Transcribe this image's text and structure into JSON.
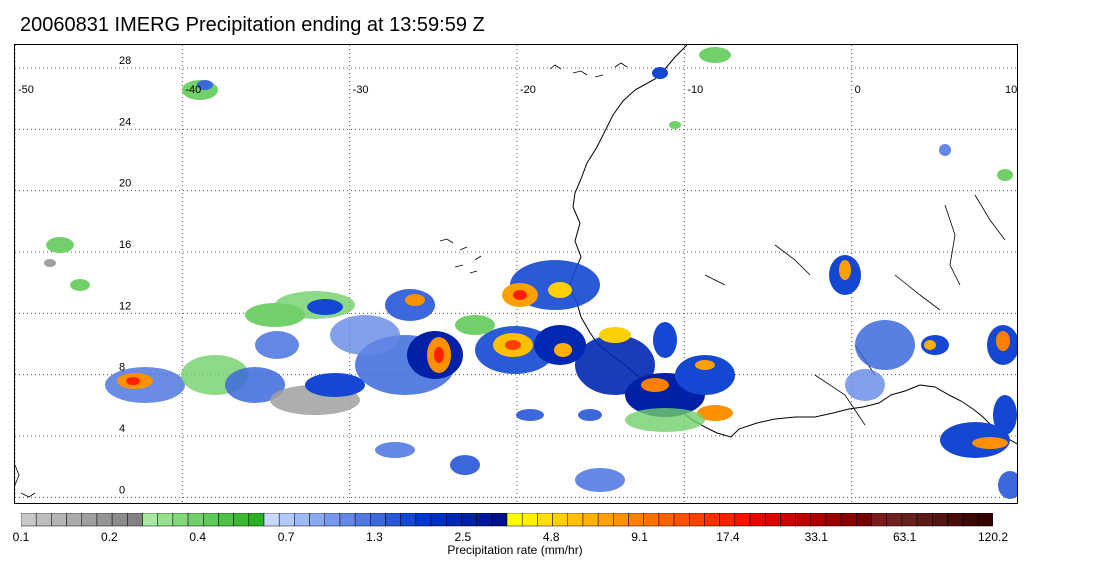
{
  "title": "20060831 IMERG Precipitation ending at 13:59:59 Z",
  "map": {
    "lon_ticks": [
      "-50",
      "-40",
      "-30",
      "-20",
      "-10",
      "0",
      "10"
    ],
    "lat_ticks": [
      "28",
      "24",
      "20",
      "16",
      "12",
      "8",
      "4",
      "0"
    ],
    "lon_range": [
      -50,
      10
    ],
    "lat_range": [
      -0.5,
      29.5
    ],
    "grid": true
  },
  "colorbar": {
    "title": "Precipitation rate (mm/hr)",
    "tick_labels": [
      "0.1",
      "0.2",
      "0.4",
      "0.7",
      "1.3",
      "2.5",
      "4.8",
      "9.1",
      "17.4",
      "33.1",
      "63.1",
      "120.2"
    ],
    "colors": [
      "#c8c8c8",
      "#bebebe",
      "#b4b4b4",
      "#aaaaaa",
      "#a0a0a0",
      "#969696",
      "#8c8c8c",
      "#828282",
      "#a8e8a0",
      "#96e08e",
      "#84d87c",
      "#72d06a",
      "#60c858",
      "#4ec046",
      "#3cb834",
      "#2ab022",
      "#c8d8ff",
      "#b4c8fa",
      "#a0b8f5",
      "#8ca8f0",
      "#7898eb",
      "#6488e6",
      "#5078e1",
      "#3c68dc",
      "#2858d7",
      "#1448d2",
      "#0038cd",
      "#0030c0",
      "#0028b3",
      "#0020a6",
      "#001899",
      "#00108c",
      "#ffff00",
      "#fff000",
      "#ffe000",
      "#ffd000",
      "#ffc000",
      "#ffb000",
      "#ffa000",
      "#ff9000",
      "#ff8000",
      "#ff7000",
      "#ff6000",
      "#ff5000",
      "#ff4000",
      "#ff3000",
      "#ff2000",
      "#ff1000",
      "#ee0000",
      "#dd0000",
      "#cc0000",
      "#bb0000",
      "#aa0000",
      "#990000",
      "#880000",
      "#770000",
      "#7a1a1a",
      "#702020",
      "#662020",
      "#5c1a1a",
      "#521414",
      "#480e0e",
      "#3e0808",
      "#340202"
    ]
  }
}
